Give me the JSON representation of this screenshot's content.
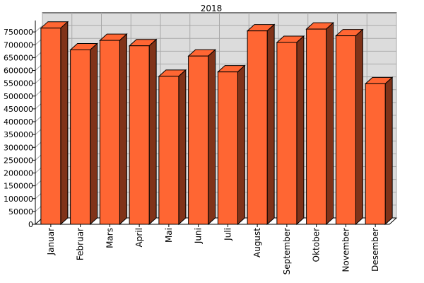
{
  "chart_data": {
    "type": "bar",
    "title": "2018",
    "xlabel": "",
    "ylabel": "",
    "ylim": [
      0,
      800000
    ],
    "yticks": [
      0,
      50000,
      100000,
      150000,
      200000,
      250000,
      300000,
      350000,
      400000,
      450000,
      500000,
      550000,
      600000,
      650000,
      700000,
      750000
    ],
    "grid": true,
    "legend": "none",
    "categories": [
      "Januar",
      "Februar",
      "Mars",
      "April",
      "Mai",
      "Juni",
      "Juli",
      "August",
      "September",
      "Oktober",
      "November",
      "Desember"
    ],
    "values": [
      765000,
      680000,
      717000,
      696000,
      577000,
      656000,
      594000,
      754000,
      709000,
      761000,
      735000,
      548000
    ]
  },
  "colors": {
    "bar_front": "#ff6633",
    "bar_top": "#ff6633",
    "bar_side": "#803319",
    "bar_outline": "#000000",
    "plot_background": "#dcdcdc",
    "grid": "#a9a9a9"
  }
}
